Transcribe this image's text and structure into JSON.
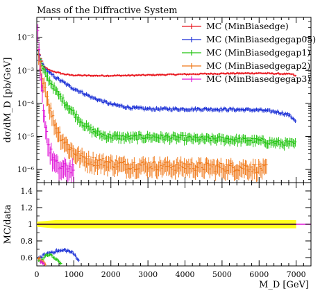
{
  "title": "Mass of the Diffractive System",
  "chart_data": [
    {
      "type": "scatter",
      "title": "Mass of the Diffractive System",
      "ylabel": "dσ/dM_D [pb/GeV]",
      "yscale": "log",
      "ylim": [
        4e-07,
        0.04
      ],
      "xlim": [
        0,
        7400
      ],
      "yticks": [
        {
          "value": 0.01,
          "label": "10⁻²"
        },
        {
          "value": 0.001,
          "label": "10⁻³"
        },
        {
          "value": 0.0001,
          "label": "10⁻⁴"
        },
        {
          "value": 1e-05,
          "label": "10⁻⁵"
        },
        {
          "value": 1e-06,
          "label": "10⁻⁶"
        }
      ],
      "legend_position": "top-right",
      "series": [
        {
          "name": "MC (MinBiasedge)",
          "color": "#e8141c",
          "errorbars": true,
          "x": [
            50,
            100,
            150,
            200,
            300,
            400,
            500,
            700,
            900,
            1200,
            1500,
            2000,
            2500,
            3000,
            3500,
            4000,
            4500,
            5000,
            5500,
            6000,
            6500,
            6900,
            7000
          ],
          "y": [
            0.0042,
            0.0024,
            0.0017,
            0.0013,
            0.00105,
            0.00095,
            0.0009,
            0.00078,
            0.00072,
            0.0007,
            0.00069,
            0.00069,
            0.0007,
            0.00072,
            0.00074,
            0.00076,
            0.00078,
            0.0008,
            0.00081,
            0.00082,
            0.00079,
            0.00076,
            0.00065
          ]
        },
        {
          "name": "MC (MinBiasedgegap05)",
          "color": "#1a2fd6",
          "errorbars": true,
          "x": [
            50,
            100,
            150,
            200,
            300,
            400,
            500,
            700,
            900,
            1200,
            1500,
            2000,
            2500,
            3000,
            3500,
            4000,
            4500,
            5000,
            5500,
            6000,
            6500,
            6800,
            6950,
            7000
          ],
          "y": [
            0.0038,
            0.0022,
            0.0016,
            0.0012,
            0.0009,
            0.00075,
            0.00062,
            0.00045,
            0.00032,
            0.00022,
            0.00015,
            9.5e-05,
            7.5e-05,
            6.8e-05,
            6.8e-05,
            6.7e-05,
            6.7e-05,
            6.6e-05,
            6.5e-05,
            6.3e-05,
            5.5e-05,
            4.5e-05,
            3.3e-05,
            2.8e-05
          ]
        },
        {
          "name": "MC (MinBiasedgegap1)",
          "color": "#21c410",
          "errorbars": true,
          "x": [
            50,
            100,
            150,
            200,
            300,
            400,
            500,
            700,
            900,
            1100,
            1300,
            1500,
            1800,
            2000,
            2500,
            3000,
            3500,
            4000,
            4500,
            5000,
            5500,
            6000,
            6500,
            7000
          ],
          "y": [
            0.003,
            0.0018,
            0.0012,
            0.0009,
            0.0006,
            0.0004,
            0.00025,
            0.00013,
            7e-05,
            3.8e-05,
            2.2e-05,
            1.5e-05,
            1.1e-05,
            1e-05,
            9.5e-06,
            1e-05,
            9.5e-06,
            9e-06,
            8.5e-06,
            8.5e-06,
            8e-06,
            7.5e-06,
            6.5e-06,
            6e-06
          ]
        },
        {
          "name": "MC (MinBiasedgegap2)",
          "color": "#f07818",
          "errorbars": true,
          "x": [
            50,
            100,
            150,
            200,
            250,
            300,
            350,
            400,
            450,
            500,
            550,
            600,
            700,
            800,
            900,
            1000,
            1200,
            1400,
            1600,
            2000,
            2400,
            3000,
            3600,
            4200,
            5000,
            5600,
            6200
          ],
          "y": [
            0.0025,
            0.0012,
            0.0007,
            0.00042,
            0.00024,
            0.00014,
            8e-05,
            5e-05,
            3.2e-05,
            2.2e-05,
            1.7e-05,
            1.3e-05,
            8.5e-06,
            6e-06,
            4.5e-06,
            3.5e-06,
            2.5e-06,
            2e-06,
            1.8e-06,
            1.6e-06,
            1.4e-06,
            1.4e-06,
            1.3e-06,
            1.3e-06,
            1.2e-06,
            1.2e-06,
            1.1e-06
          ]
        },
        {
          "name": "MC (MinBiasedgegap3)",
          "color": "#e014d8",
          "errorbars": true,
          "x": [
            30,
            80,
            150,
            200,
            250,
            300,
            350,
            500,
            600,
            800,
            1000
          ],
          "y": [
            0.015,
            0.0012,
            0.0002,
            5e-05,
            1.8e-05,
            8e-06,
            4e-06,
            1.6e-06,
            1.2e-06,
            1.1e-06,
            1.2e-06
          ]
        }
      ]
    },
    {
      "type": "scatter",
      "ylabel": "MC/data",
      "xlabel": "M_D [GeV]",
      "ylim": [
        0.5,
        1.5
      ],
      "xlim": [
        0,
        7400
      ],
      "xticks": [
        0,
        1000,
        2000,
        3000,
        4000,
        5000,
        6000,
        7000
      ],
      "yticks": [
        0.6,
        0.8,
        1,
        1.2,
        1.4
      ],
      "reference_line": {
        "y": 1,
        "color": "#e014d8"
      },
      "uncertainty_band": {
        "color": "#ffff1e",
        "x": [
          0,
          500,
          1000,
          2000,
          3000,
          4000,
          5000,
          6000,
          7000
        ],
        "lower": [
          0.97,
          0.95,
          0.95,
          0.95,
          0.95,
          0.95,
          0.95,
          0.95,
          0.95
        ],
        "upper": [
          1.03,
          1.05,
          1.05,
          1.05,
          1.05,
          1.05,
          1.05,
          1.05,
          1.05
        ]
      },
      "series": [
        {
          "name": "MC (MinBiasedgegap05)",
          "color": "#1a2fd6",
          "x": [
            50,
            150,
            250,
            350,
            450,
            550,
            650,
            750,
            850,
            950,
            1050,
            1150
          ],
          "y": [
            0.58,
            0.62,
            0.64,
            0.66,
            0.67,
            0.68,
            0.68,
            0.69,
            0.68,
            0.66,
            0.62,
            0.56
          ]
        },
        {
          "name": "MC (MinBiasedgegap1)",
          "color": "#21c410",
          "x": [
            50,
            150,
            250,
            350,
            450,
            550,
            650
          ],
          "y": [
            0.56,
            0.58,
            0.62,
            0.64,
            0.6,
            0.57,
            0.53
          ]
        },
        {
          "name": "MC (MinBiasedgegap2)",
          "color": "#f07818",
          "x": [
            50,
            150,
            250
          ],
          "y": [
            0.6,
            0.55,
            0.52
          ]
        },
        {
          "name": "MC (MinBiasedgegap3)",
          "color": "#e014d8",
          "x": [
            100,
            200
          ],
          "y": [
            0.55,
            0.52
          ]
        }
      ]
    }
  ]
}
